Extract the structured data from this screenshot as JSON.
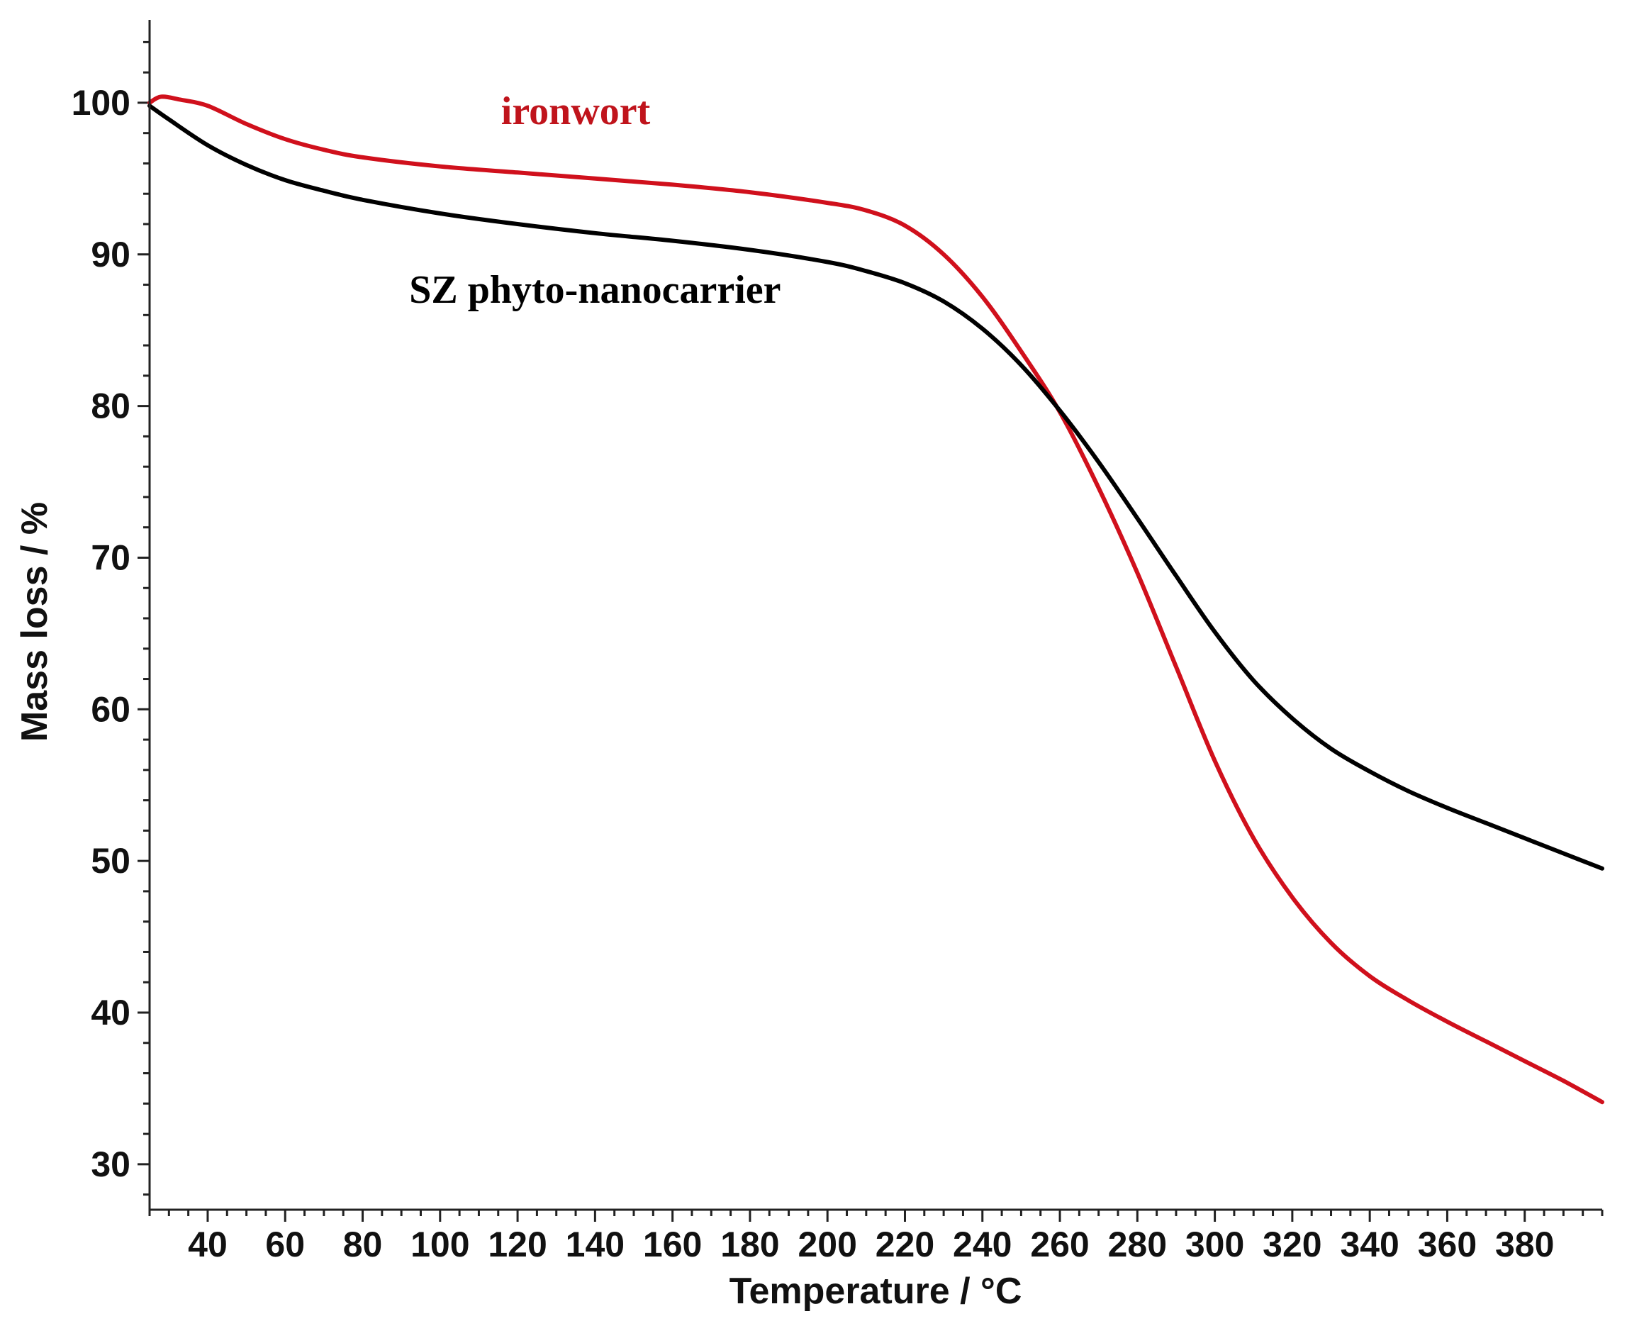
{
  "chart_data": {
    "type": "line",
    "title": "",
    "xlabel": "Temperature / °C",
    "ylabel": "Mass loss / %",
    "xlim": [
      25,
      400
    ],
    "ylim": [
      27,
      105
    ],
    "grid": false,
    "x_ticks": [
      40,
      60,
      80,
      100,
      120,
      140,
      160,
      180,
      200,
      220,
      240,
      260,
      280,
      300,
      320,
      340,
      360,
      380
    ],
    "x_tick_labels": [
      "40",
      "60",
      "80",
      "100",
      "120",
      "140",
      "160",
      "180",
      "200",
      "220",
      "240",
      "260",
      "280",
      "300",
      "320",
      "340",
      "360",
      "380"
    ],
    "y_ticks": [
      30,
      40,
      50,
      60,
      70,
      80,
      90,
      100
    ],
    "y_tick_labels": [
      "30",
      "40",
      "50",
      "60",
      "70",
      "80",
      "90",
      "100"
    ],
    "x_minor_step": 5,
    "y_minor_step": 2,
    "series": [
      {
        "name": "ironwort",
        "color": "#d0101c",
        "x": [
          25,
          28,
          33,
          40,
          50,
          60,
          70,
          80,
          100,
          120,
          140,
          160,
          180,
          200,
          210,
          220,
          230,
          240,
          250,
          260,
          270,
          280,
          290,
          300,
          310,
          320,
          330,
          340,
          350,
          360,
          370,
          380,
          390,
          400
        ],
        "y": [
          100.0,
          100.4,
          100.2,
          99.8,
          98.6,
          97.6,
          96.9,
          96.4,
          95.8,
          95.4,
          95.0,
          94.6,
          94.1,
          93.4,
          92.9,
          91.9,
          90.0,
          87.2,
          83.6,
          79.6,
          74.6,
          69.0,
          62.8,
          56.6,
          51.5,
          47.6,
          44.6,
          42.4,
          40.8,
          39.4,
          38.1,
          36.8,
          35.5,
          34.1
        ]
      },
      {
        "name": "SZ phyto-nanocarrier",
        "color": "#000000",
        "x": [
          25,
          30,
          40,
          50,
          60,
          70,
          80,
          100,
          120,
          140,
          160,
          180,
          200,
          210,
          220,
          230,
          240,
          250,
          260,
          270,
          280,
          290,
          300,
          310,
          320,
          330,
          340,
          350,
          360,
          370,
          380,
          390,
          400
        ],
        "y": [
          99.8,
          98.9,
          97.2,
          95.9,
          94.9,
          94.2,
          93.6,
          92.7,
          92.0,
          91.4,
          90.9,
          90.3,
          89.5,
          88.9,
          88.1,
          86.9,
          85.1,
          82.7,
          79.7,
          76.3,
          72.6,
          68.8,
          65.1,
          61.9,
          59.4,
          57.4,
          55.9,
          54.6,
          53.5,
          52.5,
          51.5,
          50.5,
          49.5
        ]
      }
    ],
    "annotations": [
      {
        "text": "ironwort",
        "color": "#c0141c",
        "x": 135,
        "y": 98.6
      },
      {
        "text": "SZ phyto-nanocarrier",
        "color": "#000000",
        "x": 140,
        "y": 86.8
      }
    ]
  }
}
